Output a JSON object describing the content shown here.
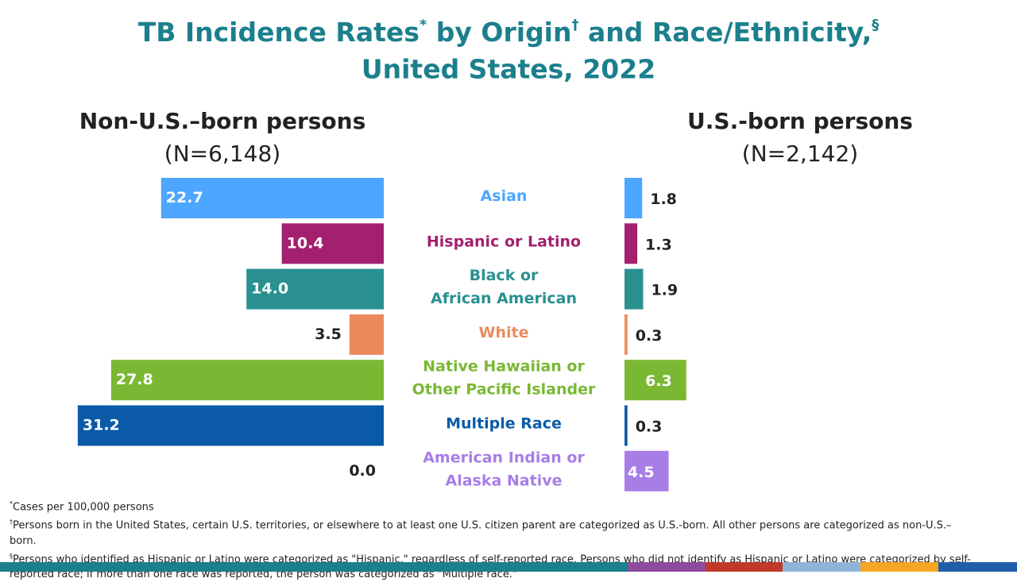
{
  "title": [
    {
      "text": "TB Incidence Rates",
      "sup": "*"
    },
    {
      "text": " by Origin",
      "sup": "†"
    },
    {
      "text": " and Race/Ethnicity,",
      "sup": "§"
    }
  ],
  "subtitle": "United States, 2022",
  "chart_data": {
    "type": "bar",
    "orientation": "horizontal",
    "layout": "butterfly",
    "categories": [
      [
        "Asian"
      ],
      [
        "Hispanic or Latino"
      ],
      [
        "Black or",
        "African American"
      ],
      [
        "White"
      ],
      [
        "Native Hawaiian or",
        "Other Pacific Islander"
      ],
      [
        "Multiple Race"
      ],
      [
        "American Indian or",
        "Alaska Native"
      ]
    ],
    "colors": [
      "#4da6ff",
      "#a3206e",
      "#2a9090",
      "#ed8a5c",
      "#7ab833",
      "#0a5aa8",
      "#a77ee6"
    ],
    "xlim": [
      0,
      32
    ],
    "series": [
      {
        "name": "Non-U.S.–born persons",
        "n_label": "(N=6,148)",
        "values": [
          22.7,
          10.4,
          14.0,
          3.5,
          27.8,
          31.2,
          0.0
        ],
        "value_labels": [
          "22.7",
          "10.4",
          "14.0",
          "3.5",
          "27.8",
          "31.2",
          "0.0"
        ]
      },
      {
        "name": "U.S.-born persons",
        "n_label": "(N=2,142)",
        "values": [
          1.8,
          1.3,
          1.9,
          0.3,
          6.3,
          0.3,
          4.5
        ],
        "value_labels": [
          "1.8",
          "1.3",
          "1.9",
          "0.3",
          "6.3",
          "0.3",
          "4.5"
        ]
      }
    ]
  },
  "footnotes": [
    {
      "mark": "*",
      "text": "Cases per 100,000 persons"
    },
    {
      "mark": "†",
      "text": "Persons born  in the United States, certain U.S. territories,  or elsewhere to at least one U.S. citizen parent are categorized as U.S.-born.  All other persons are categorized as non-U.S.–born."
    },
    {
      "mark": "§",
      "text": "Persons who identified as Hispanic or Latino were categorized as \"Hispanic,\" regardless of self-reported race. Persons who did not identify as Hispanic or Latino were categorized by self-reported  race; if more than one race was reported,  the person was categorized as \"Multiple race.\""
    }
  ]
}
